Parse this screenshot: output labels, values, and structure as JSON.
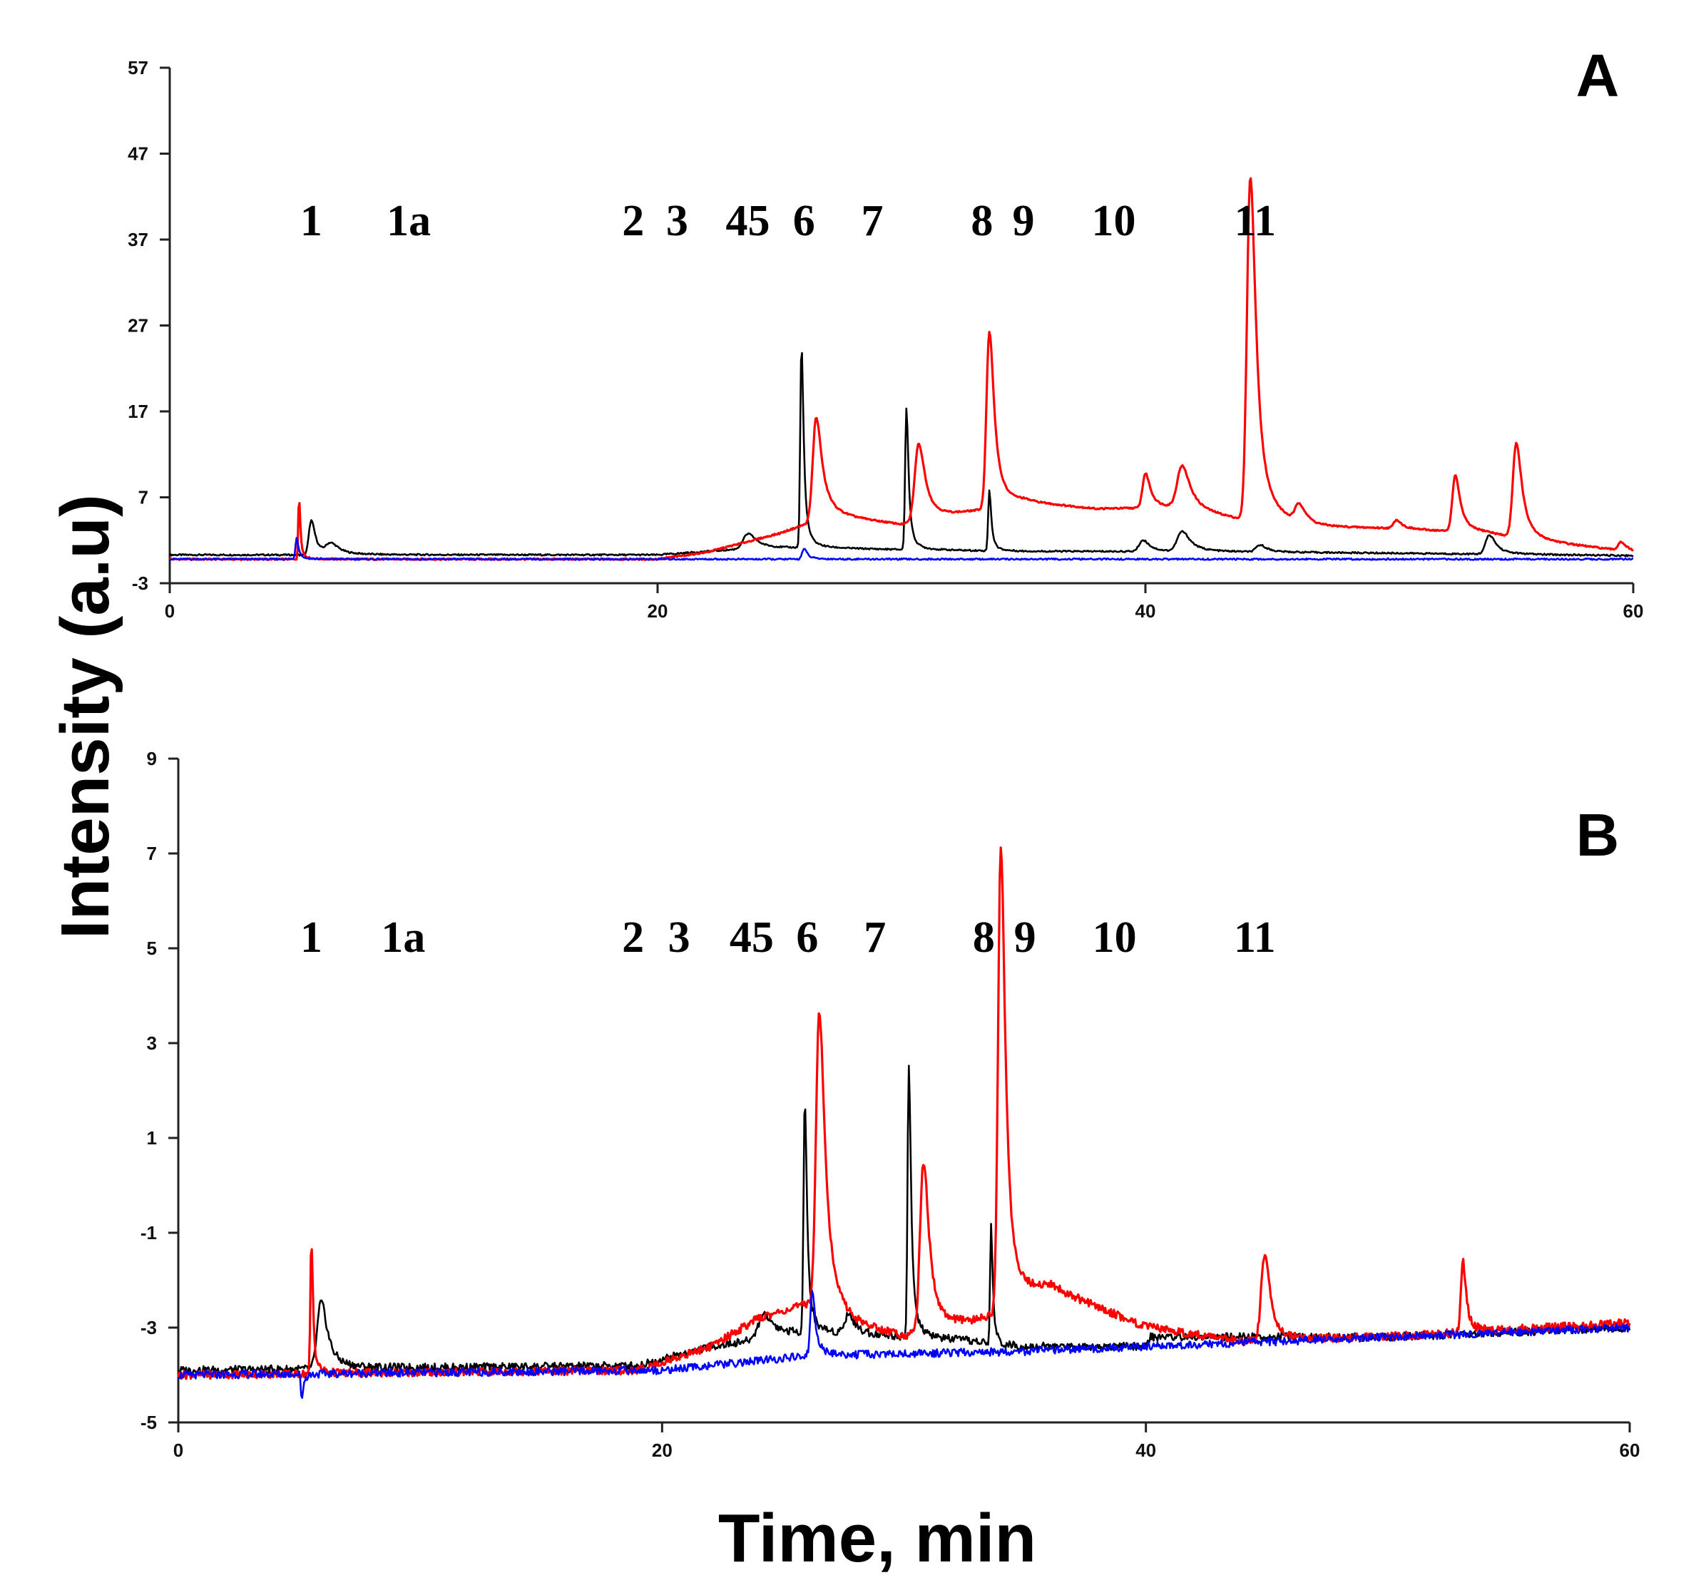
{
  "chart_data": [
    {
      "type": "line",
      "panel": "A",
      "xlabel": "Time, min",
      "ylabel": "Intensity (a.u)",
      "xlim": [
        0,
        60
      ],
      "ylim": [
        -3,
        57
      ],
      "xticks": [
        0,
        20,
        40,
        60
      ],
      "yticks": [
        -3,
        7,
        17,
        27,
        37,
        47,
        57
      ],
      "grid": false,
      "peak_labels": [
        {
          "text": "1",
          "x": 5.8
        },
        {
          "text": "1a",
          "x": 9.8
        },
        {
          "text": "2",
          "x": 19
        },
        {
          "text": "3",
          "x": 20.8
        },
        {
          "text": "45",
          "x": 23.7
        },
        {
          "text": "6",
          "x": 26
        },
        {
          "text": "7",
          "x": 28.8
        },
        {
          "text": "8",
          "x": 33.3
        },
        {
          "text": "9",
          "x": 35
        },
        {
          "text": "10",
          "x": 38.7
        },
        {
          "text": "11",
          "x": 44.5
        }
      ],
      "baselines": {
        "black": 0.3,
        "red": -0.2,
        "blue": -0.2
      },
      "series": [
        {
          "name": "black",
          "color": "#000000",
          "peaks": [
            [
              5.8,
              4.0,
              0.25
            ],
            [
              6.6,
              1.2,
              0.5
            ],
            [
              23.7,
              1.7,
              0.5
            ],
            [
              25.9,
              23.5,
              0.13
            ],
            [
              30.2,
              16.5,
              0.13
            ],
            [
              33.6,
              7.0,
              0.12
            ],
            [
              39.9,
              1.3,
              0.4
            ],
            [
              41.5,
              2.3,
              0.5
            ],
            [
              44.7,
              0.8,
              0.4
            ],
            [
              54.1,
              2.2,
              0.4
            ]
          ],
          "drift": [
            [
              0,
              0
            ],
            [
              20,
              0
            ],
            [
              24,
              0.8
            ],
            [
              26,
              0.8
            ],
            [
              30,
              0.6
            ],
            [
              35,
              0.4
            ],
            [
              40,
              0.4
            ],
            [
              50,
              0.2
            ],
            [
              60,
              -0.1
            ]
          ]
        },
        {
          "name": "red",
          "color": "#ff0000",
          "peaks": [
            [
              5.3,
              7.2,
              0.08
            ],
            [
              26.5,
              12.0,
              0.35
            ],
            [
              30.7,
              9.0,
              0.4
            ],
            [
              33.6,
              20.5,
              0.3
            ],
            [
              40.0,
              4.0,
              0.3
            ],
            [
              41.5,
              5.0,
              0.5
            ],
            [
              44.3,
              40.0,
              0.35
            ],
            [
              46.3,
              2.0,
              0.4
            ],
            [
              50.3,
              1.0,
              0.3
            ],
            [
              52.7,
              6.5,
              0.3
            ],
            [
              55.2,
              11.0,
              0.35
            ],
            [
              59.5,
              1.0,
              0.3
            ]
          ],
          "drift": [
            [
              0,
              0
            ],
            [
              8,
              0
            ],
            [
              20,
              0
            ],
            [
              22,
              0.8
            ],
            [
              25,
              3.0
            ],
            [
              26,
              4.0
            ],
            [
              27,
              5.0
            ],
            [
              30,
              4.0
            ],
            [
              32,
              5.0
            ],
            [
              35,
              6.5
            ],
            [
              38,
              5.8
            ],
            [
              41,
              6.0
            ],
            [
              44,
              4.5
            ],
            [
              47,
              3.5
            ],
            [
              50,
              3.5
            ],
            [
              54,
              3.0
            ],
            [
              56,
              2.0
            ],
            [
              60,
              0.8
            ]
          ]
        },
        {
          "name": "blue",
          "color": "#0000ff",
          "peaks": [
            [
              5.2,
              2.5,
              0.12
            ],
            [
              26.0,
              1.2,
              0.2
            ]
          ],
          "drift": [
            [
              0,
              0
            ],
            [
              60,
              0
            ]
          ]
        }
      ]
    },
    {
      "type": "line",
      "panel": "B",
      "xlabel": "Time, min",
      "ylabel": "Intensity (a.u)",
      "xlim": [
        0,
        60
      ],
      "ylim": [
        -5,
        9
      ],
      "xticks": [
        0,
        20,
        40,
        60
      ],
      "yticks": [
        -5,
        -3,
        -1,
        1,
        3,
        5,
        7,
        9
      ],
      "grid": false,
      "peak_labels": [
        {
          "text": "1",
          "x": 5.5
        },
        {
          "text": "1a",
          "x": 9.3
        },
        {
          "text": "2",
          "x": 18.8
        },
        {
          "text": "3",
          "x": 20.7
        },
        {
          "text": "45",
          "x": 23.7
        },
        {
          "text": "6",
          "x": 26
        },
        {
          "text": "7",
          "x": 28.8
        },
        {
          "text": "8",
          "x": 33.3
        },
        {
          "text": "9",
          "x": 35
        },
        {
          "text": "10",
          "x": 38.7
        },
        {
          "text": "11",
          "x": 44.5
        }
      ],
      "baselines": {
        "black": -3.9,
        "red": -4.0,
        "blue": -4.0
      },
      "series": [
        {
          "name": "black",
          "color": "#000000",
          "peaks": [
            [
              5.9,
              1.4,
              0.4
            ],
            [
              24.2,
              0.5,
              0.6
            ],
            [
              25.9,
              4.9,
              0.13
            ],
            [
              27.7,
              0.4,
              0.4
            ],
            [
              30.2,
              5.8,
              0.13
            ],
            [
              33.6,
              2.5,
              0.1
            ]
          ],
          "drift": [
            [
              0,
              0
            ],
            [
              19,
              0.1
            ],
            [
              22,
              0.5
            ],
            [
              26,
              0.8
            ],
            [
              30,
              0.7
            ],
            [
              33,
              0.6
            ],
            [
              34,
              0.5
            ],
            [
              40,
              0.5
            ],
            [
              40.2,
              0.7
            ],
            [
              50,
              0.7
            ],
            [
              60,
              0.9
            ]
          ]
        },
        {
          "name": "red",
          "color": "#ff0000",
          "peaks": [
            [
              5.5,
              2.8,
              0.1
            ],
            [
              26.5,
              6.3,
              0.35
            ],
            [
              30.8,
              3.6,
              0.35
            ],
            [
              34.0,
              9.8,
              0.28
            ],
            [
              44.9,
              1.8,
              0.35
            ],
            [
              53.1,
              1.5,
              0.2
            ]
          ],
          "drift": [
            [
              0,
              0
            ],
            [
              19,
              0.1
            ],
            [
              22,
              0.6
            ],
            [
              24,
              1.2
            ],
            [
              26,
              1.5
            ],
            [
              28,
              1.0
            ],
            [
              30,
              0.8
            ],
            [
              33,
              1.1
            ],
            [
              36,
              1.8
            ],
            [
              40,
              1.0
            ],
            [
              44,
              0.7
            ],
            [
              50,
              0.8
            ],
            [
              60,
              1.1
            ]
          ]
        },
        {
          "name": "blue",
          "color": "#0000ff",
          "peaks": [
            [
              5.1,
              -0.5,
              0.1
            ],
            [
              26.2,
              1.3,
              0.2
            ]
          ],
          "drift": [
            [
              0,
              0
            ],
            [
              20,
              0.1
            ],
            [
              26,
              0.4
            ],
            [
              35,
              0.5
            ],
            [
              60,
              1.0
            ]
          ]
        }
      ]
    }
  ],
  "figure": {
    "panel_a_letter": "A",
    "panel_b_letter": "B",
    "shared_xlabel": "Time, min",
    "shared_ylabel": "Intensity (a.u)"
  }
}
